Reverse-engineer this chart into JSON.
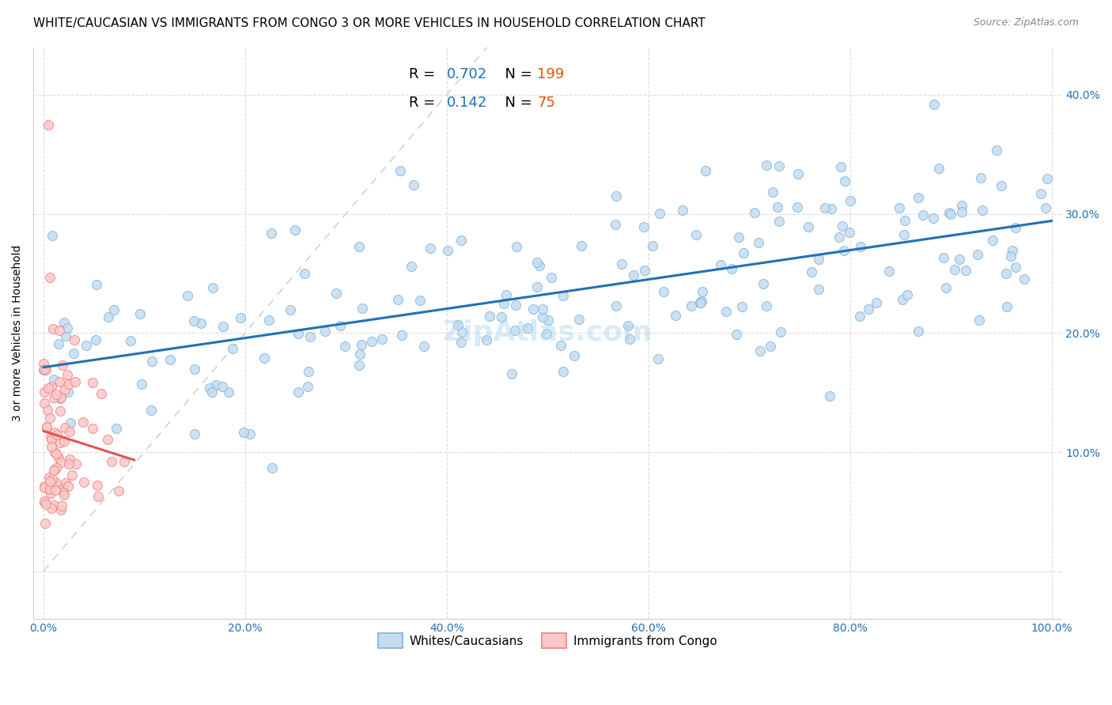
{
  "title": "WHITE/CAUCASIAN VS IMMIGRANTS FROM CONGO 3 OR MORE VEHICLES IN HOUSEHOLD CORRELATION CHART",
  "source": "Source: ZipAtlas.com",
  "ylabel": "3 or more Vehicles in Household",
  "legend_label1": "Whites/Caucasians",
  "legend_label2": "Immigrants from Congo",
  "R1": 0.702,
  "N1": 199,
  "R2": 0.142,
  "N2": 75,
  "blue_fill": "#c6dcf0",
  "blue_edge": "#7ab3d9",
  "pink_fill": "#fcc8c8",
  "pink_edge": "#f08080",
  "blue_line_color": "#2171b5",
  "pink_line_color": "#e05555",
  "diag_line_color": "#cccccc",
  "R_value_color": "#2171b5",
  "N_value_color": "#e05500",
  "title_fontsize": 11,
  "source_fontsize": 9,
  "axis_label_color": "#2171b5",
  "grid_color": "#dddddd",
  "background_color": "#ffffff",
  "xlim": [
    -0.01,
    1.01
  ],
  "ylim": [
    -0.04,
    0.44
  ],
  "xticks": [
    0.0,
    0.2,
    0.4,
    0.6,
    0.8,
    1.0
  ],
  "xtick_labels": [
    "0.0%",
    "20.0%",
    "40.0%",
    "60.0%",
    "80.0%",
    "100.0%"
  ],
  "yticks_right": [
    0.1,
    0.2,
    0.3,
    0.4
  ],
  "ytick_labels_right": [
    "10.0%",
    "20.0%",
    "30.0%",
    "40.0%"
  ]
}
